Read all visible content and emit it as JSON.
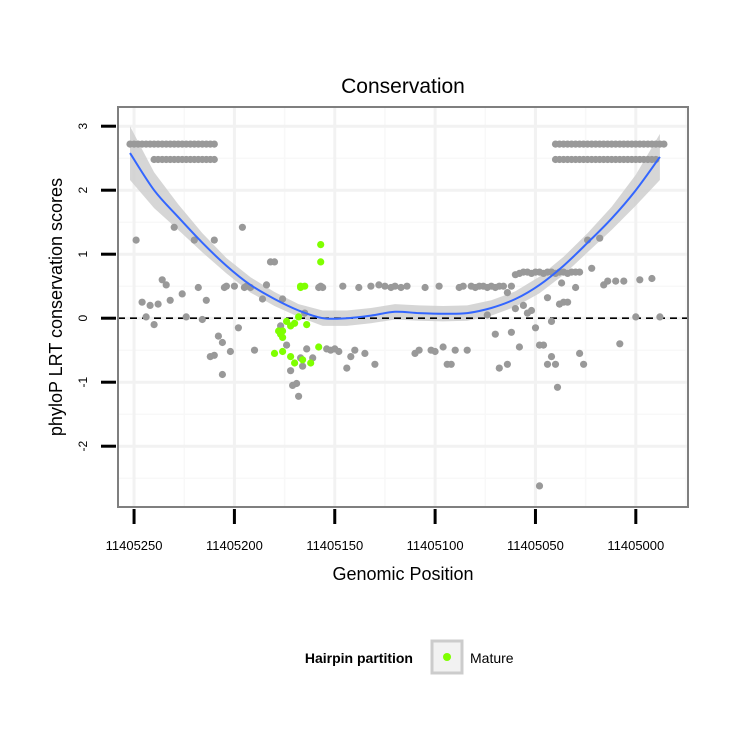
{
  "chart_data": {
    "type": "scatter",
    "title": "Conservation",
    "xlabel": "Genomic Position",
    "ylabel": "phyloP LRT conservation scores",
    "x_reversed": true,
    "xlim": [
      11405258,
      11404974
    ],
    "ylim": [
      -2.95,
      3.3
    ],
    "x_ticks": [
      11405250,
      11405200,
      11405150,
      11405100,
      11405050,
      11405000
    ],
    "x_tick_labels": [
      "11405250",
      "11405200",
      "11405150",
      "11405100",
      "11405050",
      "11405000"
    ],
    "y_ticks": [
      3,
      2,
      1,
      0,
      -1,
      -2
    ],
    "y_tick_labels": [
      "3",
      "2",
      "1",
      "0",
      "-1",
      "-2"
    ],
    "grid": true,
    "reference_line": {
      "y": 0,
      "style": "dashed"
    },
    "legend": {
      "title": "Hairpin partition",
      "position": "bottom",
      "entries": [
        {
          "label": "Mature",
          "color": "#7fff00"
        }
      ]
    },
    "colors": {
      "other": "#999999",
      "mature": "#7fff00",
      "smooth": "#3366ff",
      "band": "#cccccc",
      "panel_border": "#7f7f7f",
      "grid": "#f2f2f2"
    },
    "series": [
      {
        "name": "",
        "color": "#999999",
        "points": [
          [
            11405249,
            1.22
          ],
          [
            11405246,
            0.25
          ],
          [
            11405244,
            0.02
          ],
          [
            11405242,
            0.2
          ],
          [
            11405240,
            -0.1
          ],
          [
            11405238,
            0.22
          ],
          [
            11405236,
            0.6
          ],
          [
            11405234,
            0.52
          ],
          [
            11405232,
            0.28
          ],
          [
            11405230,
            1.42
          ],
          [
            11405226,
            0.38
          ],
          [
            11405224,
            0.02
          ],
          [
            11405220,
            1.22
          ],
          [
            11405218,
            0.48
          ],
          [
            11405216,
            -0.02
          ],
          [
            11405214,
            0.28
          ],
          [
            11405212,
            -0.6
          ],
          [
            11405210,
            -0.58
          ],
          [
            11405210,
            1.22
          ],
          [
            11405208,
            -0.28
          ],
          [
            11405206,
            -0.88
          ],
          [
            11405206,
            -0.38
          ],
          [
            11405205,
            0.48
          ],
          [
            11405204,
            0.5
          ],
          [
            11405202,
            -0.52
          ],
          [
            11405200,
            0.5
          ],
          [
            11405198,
            -0.15
          ],
          [
            11405196,
            1.42
          ],
          [
            11405195,
            0.48
          ],
          [
            11405194,
            0.5
          ],
          [
            11405192,
            0.48
          ],
          [
            11405190,
            -0.5
          ],
          [
            11405186,
            0.3
          ],
          [
            11405184,
            0.52
          ],
          [
            11405182,
            0.88
          ],
          [
            11405180,
            0.88
          ],
          [
            11405177,
            -0.12
          ],
          [
            11405176,
            0.3
          ],
          [
            11405174,
            -0.42
          ],
          [
            11405172,
            -0.82
          ],
          [
            11405171,
            -1.05
          ],
          [
            11405169,
            -1.02
          ],
          [
            11405168,
            -1.22
          ],
          [
            11405167,
            -0.62
          ],
          [
            11405166,
            -0.75
          ],
          [
            11405165,
            0.08
          ],
          [
            11405164,
            -0.48
          ],
          [
            11405161,
            -0.62
          ],
          [
            11405158,
            0.48
          ],
          [
            11405157,
            0.5
          ],
          [
            11405156,
            0.48
          ],
          [
            11405154,
            -0.48
          ],
          [
            11405152,
            -0.5
          ],
          [
            11405150,
            -0.48
          ],
          [
            11405148,
            -0.52
          ],
          [
            11405146,
            0.5
          ],
          [
            11405144,
            -0.78
          ],
          [
            11405142,
            -0.6
          ],
          [
            11405140,
            -0.5
          ],
          [
            11405138,
            0.48
          ],
          [
            11405135,
            -0.55
          ],
          [
            11405132,
            0.5
          ],
          [
            11405130,
            -0.72
          ],
          [
            11405128,
            0.52
          ],
          [
            11405125,
            0.5
          ],
          [
            11405122,
            0.48
          ],
          [
            11405120,
            0.5
          ],
          [
            11405117,
            0.48
          ],
          [
            11405114,
            0.5
          ],
          [
            11405110,
            -0.55
          ],
          [
            11405108,
            -0.5
          ],
          [
            11405105,
            0.48
          ],
          [
            11405102,
            -0.5
          ],
          [
            11405100,
            -0.52
          ],
          [
            11405098,
            0.5
          ],
          [
            11405096,
            -0.45
          ],
          [
            11405094,
            -0.72
          ],
          [
            11405092,
            -0.72
          ],
          [
            11405090,
            -0.5
          ],
          [
            11405088,
            0.48
          ],
          [
            11405086,
            0.5
          ],
          [
            11405084,
            -0.5
          ],
          [
            11405082,
            0.5
          ],
          [
            11405080,
            0.48
          ],
          [
            11405078,
            0.5
          ],
          [
            11405076,
            0.5
          ],
          [
            11405074,
            0.48
          ],
          [
            11405072,
            0.5
          ],
          [
            11405070,
            0.48
          ],
          [
            11405068,
            0.5
          ],
          [
            11405066,
            0.5
          ],
          [
            11405064,
            -0.72
          ],
          [
            11405062,
            0.5
          ],
          [
            11405060,
            0.68
          ],
          [
            11405058,
            0.7
          ],
          [
            11405056,
            0.72
          ],
          [
            11405054,
            0.72
          ],
          [
            11405052,
            0.7
          ],
          [
            11405050,
            0.72
          ],
          [
            11405048,
            0.72
          ],
          [
            11405046,
            0.7
          ],
          [
            11405044,
            0.72
          ],
          [
            11405042,
            0.72
          ],
          [
            11405040,
            0.7
          ],
          [
            11405038,
            0.72
          ],
          [
            11405036,
            0.72
          ],
          [
            11405034,
            0.7
          ],
          [
            11405032,
            0.72
          ],
          [
            11405030,
            0.72
          ],
          [
            11405028,
            0.72
          ],
          [
            11405074,
            0.05
          ],
          [
            11405070,
            -0.25
          ],
          [
            11405068,
            -0.78
          ],
          [
            11405064,
            0.4
          ],
          [
            11405062,
            -0.22
          ],
          [
            11405060,
            0.15
          ],
          [
            11405058,
            -0.45
          ],
          [
            11405056,
            0.2
          ],
          [
            11405054,
            0.08
          ],
          [
            11405052,
            0.12
          ],
          [
            11405050,
            -0.15
          ],
          [
            11405048,
            -0.42
          ],
          [
            11405046,
            -0.42
          ],
          [
            11405044,
            0.32
          ],
          [
            11405042,
            -0.05
          ],
          [
            11405040,
            -0.72
          ],
          [
            11405038,
            0.22
          ],
          [
            11405037,
            0.55
          ],
          [
            11405048,
            -2.62
          ],
          [
            11405044,
            -0.72
          ],
          [
            11405042,
            -0.6
          ],
          [
            11405039,
            -1.08
          ],
          [
            11405036,
            0.25
          ],
          [
            11405034,
            0.25
          ],
          [
            11405030,
            0.48
          ],
          [
            11405028,
            -0.55
          ],
          [
            11405026,
            -0.72
          ],
          [
            11405024,
            1.22
          ],
          [
            11405022,
            0.78
          ],
          [
            11405018,
            1.25
          ],
          [
            11405016,
            0.52
          ],
          [
            11405014,
            0.58
          ],
          [
            11405010,
            0.58
          ],
          [
            11405008,
            -0.4
          ],
          [
            11405006,
            0.58
          ],
          [
            11405000,
            0.02
          ],
          [
            11404998,
            0.6
          ],
          [
            11404992,
            0.62
          ],
          [
            11404988,
            0.02
          ],
          [
            11405252,
            2.72
          ],
          [
            11405250,
            2.72
          ],
          [
            11405248,
            2.72
          ],
          [
            11405246,
            2.72
          ],
          [
            11405244,
            2.72
          ],
          [
            11405242,
            2.72
          ],
          [
            11405240,
            2.72
          ],
          [
            11405238,
            2.72
          ],
          [
            11405236,
            2.72
          ],
          [
            11405234,
            2.72
          ],
          [
            11405232,
            2.72
          ],
          [
            11405230,
            2.72
          ],
          [
            11405228,
            2.72
          ],
          [
            11405226,
            2.72
          ],
          [
            11405224,
            2.72
          ],
          [
            11405222,
            2.72
          ],
          [
            11405220,
            2.72
          ],
          [
            11405218,
            2.72
          ],
          [
            11405216,
            2.72
          ],
          [
            11405214,
            2.72
          ],
          [
            11405212,
            2.72
          ],
          [
            11405210,
            2.72
          ],
          [
            11405240,
            2.48
          ],
          [
            11405238,
            2.48
          ],
          [
            11405236,
            2.48
          ],
          [
            11405234,
            2.48
          ],
          [
            11405232,
            2.48
          ],
          [
            11405230,
            2.48
          ],
          [
            11405228,
            2.48
          ],
          [
            11405226,
            2.48
          ],
          [
            11405224,
            2.48
          ],
          [
            11405222,
            2.48
          ],
          [
            11405220,
            2.48
          ],
          [
            11405218,
            2.48
          ],
          [
            11405216,
            2.48
          ],
          [
            11405214,
            2.48
          ],
          [
            11405212,
            2.48
          ],
          [
            11405210,
            2.48
          ],
          [
            11405040,
            2.72
          ],
          [
            11405038,
            2.72
          ],
          [
            11405036,
            2.72
          ],
          [
            11405034,
            2.72
          ],
          [
            11405032,
            2.72
          ],
          [
            11405030,
            2.72
          ],
          [
            11405028,
            2.72
          ],
          [
            11405026,
            2.72
          ],
          [
            11405024,
            2.72
          ],
          [
            11405022,
            2.72
          ],
          [
            11405020,
            2.72
          ],
          [
            11405018,
            2.72
          ],
          [
            11405016,
            2.72
          ],
          [
            11405014,
            2.72
          ],
          [
            11405012,
            2.72
          ],
          [
            11405010,
            2.72
          ],
          [
            11405008,
            2.72
          ],
          [
            11405006,
            2.72
          ],
          [
            11405004,
            2.72
          ],
          [
            11405002,
            2.72
          ],
          [
            11405000,
            2.72
          ],
          [
            11404998,
            2.72
          ],
          [
            11404996,
            2.72
          ],
          [
            11404994,
            2.72
          ],
          [
            11404992,
            2.72
          ],
          [
            11404990,
            2.72
          ],
          [
            11404988,
            2.72
          ],
          [
            11404986,
            2.72
          ],
          [
            11405040,
            2.48
          ],
          [
            11405038,
            2.48
          ],
          [
            11405036,
            2.48
          ],
          [
            11405034,
            2.48
          ],
          [
            11405032,
            2.48
          ],
          [
            11405030,
            2.48
          ],
          [
            11405028,
            2.48
          ],
          [
            11405026,
            2.48
          ],
          [
            11405024,
            2.48
          ],
          [
            11405022,
            2.48
          ],
          [
            11405020,
            2.48
          ],
          [
            11405018,
            2.48
          ],
          [
            11405016,
            2.48
          ],
          [
            11405014,
            2.48
          ],
          [
            11405012,
            2.48
          ],
          [
            11405010,
            2.48
          ],
          [
            11405008,
            2.48
          ],
          [
            11405006,
            2.48
          ],
          [
            11405004,
            2.48
          ],
          [
            11405002,
            2.48
          ],
          [
            11405000,
            2.48
          ],
          [
            11404998,
            2.48
          ],
          [
            11404996,
            2.48
          ],
          [
            11404994,
            2.48
          ],
          [
            11404992,
            2.48
          ],
          [
            11404990,
            2.48
          ]
        ]
      },
      {
        "name": "Mature",
        "color": "#7fff00",
        "points": [
          [
            11405157,
            1.15
          ],
          [
            11405157,
            0.88
          ],
          [
            11405165,
            0.5
          ],
          [
            11405167,
            0.5
          ],
          [
            11405167,
            0.48
          ],
          [
            11405168,
            0.02
          ],
          [
            11405170,
            -0.08
          ],
          [
            11405172,
            -0.12
          ],
          [
            11405174,
            -0.05
          ],
          [
            11405176,
            -0.2
          ],
          [
            11405176,
            -0.3
          ],
          [
            11405177,
            -0.25
          ],
          [
            11405178,
            -0.2
          ],
          [
            11405180,
            -0.55
          ],
          [
            11405176,
            -0.52
          ],
          [
            11405172,
            -0.6
          ],
          [
            11405166,
            -0.65
          ],
          [
            11405162,
            -0.7
          ],
          [
            11405158,
            -0.45
          ],
          [
            11405164,
            -0.1
          ],
          [
            11405170,
            -0.7
          ]
        ]
      }
    ],
    "smooth_curve": {
      "method": "loess",
      "x": [
        11405252,
        11405240,
        11405228,
        11405216,
        11405204,
        11405192,
        11405180,
        11405168,
        11405156,
        11405144,
        11405132,
        11405120,
        11405108,
        11405096,
        11405084,
        11405072,
        11405060,
        11405048,
        11405036,
        11405024,
        11405012,
        11405000,
        11404988
      ],
      "y": [
        2.58,
        2.0,
        1.58,
        1.18,
        0.82,
        0.52,
        0.3,
        0.12,
        0.0,
        0.0,
        0.04,
        0.1,
        0.08,
        0.07,
        0.08,
        0.16,
        0.3,
        0.52,
        0.82,
        1.18,
        1.56,
        2.0,
        2.52
      ],
      "band_half_width": [
        0.42,
        0.28,
        0.2,
        0.15,
        0.12,
        0.12,
        0.11,
        0.1,
        0.12,
        0.12,
        0.12,
        0.12,
        0.12,
        0.12,
        0.12,
        0.12,
        0.12,
        0.13,
        0.14,
        0.15,
        0.18,
        0.24,
        0.36
      ]
    }
  }
}
